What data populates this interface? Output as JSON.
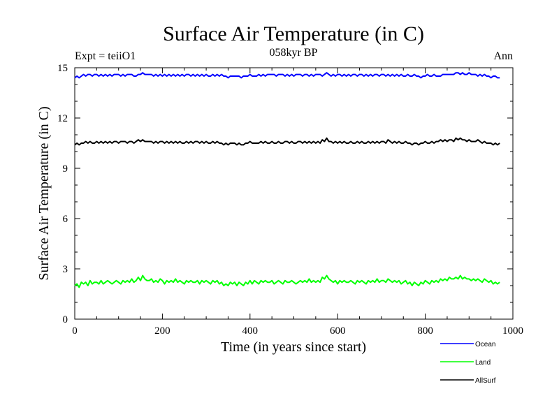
{
  "chart_data": {
    "type": "line",
    "title": "Surface Air Temperature (in C)",
    "subtitle": "058kyr BP",
    "left_note": "Expt = teiiO1",
    "right_note": "Ann",
    "xlabel": "Time (in years since start)",
    "ylabel": "Surface Air Temperature (in C)",
    "xlim": [
      0,
      1000
    ],
    "ylim": [
      0,
      15
    ],
    "xticks": [
      "0",
      "200",
      "400",
      "600",
      "800",
      "1000"
    ],
    "yticks": [
      "0",
      "3",
      "6",
      "9",
      "12",
      "15"
    ],
    "grid": false,
    "legend_position": "bottom-right, below plot",
    "x_step": 5,
    "series": [
      {
        "name": "Ocean",
        "color": "#0000ff",
        "values": [
          14.4,
          14.5,
          14.4,
          14.5,
          14.6,
          14.5,
          14.6,
          14.6,
          14.5,
          14.6,
          14.6,
          14.5,
          14.6,
          14.5,
          14.6,
          14.5,
          14.6,
          14.5,
          14.6,
          14.6,
          14.6,
          14.5,
          14.6,
          14.5,
          14.6,
          14.6,
          14.6,
          14.5,
          14.5,
          14.6,
          14.6,
          14.7,
          14.6,
          14.6,
          14.6,
          14.6,
          14.5,
          14.6,
          14.5,
          14.6,
          14.5,
          14.6,
          14.5,
          14.6,
          14.5,
          14.6,
          14.5,
          14.6,
          14.5,
          14.6,
          14.5,
          14.6,
          14.6,
          14.5,
          14.6,
          14.5,
          14.6,
          14.5,
          14.6,
          14.5,
          14.6,
          14.5,
          14.5,
          14.6,
          14.5,
          14.6,
          14.5,
          14.6,
          14.5,
          14.5,
          14.4,
          14.5,
          14.5,
          14.5,
          14.5,
          14.5,
          14.4,
          14.5,
          14.5,
          14.5,
          14.6,
          14.5,
          14.5,
          14.5,
          14.6,
          14.5,
          14.6,
          14.5,
          14.6,
          14.6,
          14.6,
          14.6,
          14.5,
          14.6,
          14.6,
          14.6,
          14.5,
          14.6,
          14.5,
          14.6,
          14.5,
          14.6,
          14.6,
          14.6,
          14.5,
          14.6,
          14.6,
          14.5,
          14.6,
          14.5,
          14.6,
          14.6,
          14.6,
          14.5,
          14.6,
          14.7,
          14.6,
          14.5,
          14.6,
          14.5,
          14.6,
          14.6,
          14.5,
          14.6,
          14.5,
          14.6,
          14.5,
          14.6,
          14.6,
          14.5,
          14.6,
          14.6,
          14.5,
          14.6,
          14.5,
          14.6,
          14.5,
          14.6,
          14.6,
          14.5,
          14.6,
          14.6,
          14.5,
          14.6,
          14.5,
          14.6,
          14.5,
          14.6,
          14.5,
          14.6,
          14.5,
          14.5,
          14.6,
          14.5,
          14.5,
          14.6,
          14.5,
          14.5,
          14.4,
          14.5,
          14.5,
          14.6,
          14.5,
          14.5,
          14.6,
          14.5,
          14.5,
          14.5,
          14.6,
          14.6,
          14.6,
          14.6,
          14.6,
          14.6,
          14.7,
          14.7,
          14.6,
          14.7,
          14.6,
          14.6,
          14.7,
          14.6,
          14.6,
          14.6,
          14.5,
          14.6,
          14.5,
          14.6,
          14.5,
          14.5,
          14.4,
          14.5,
          14.5,
          14.4,
          14.4
        ]
      },
      {
        "name": "Land",
        "color": "#00ff00",
        "values": [
          2.0,
          2.1,
          1.9,
          2.2,
          2.1,
          2.2,
          2.0,
          2.3,
          2.1,
          2.2,
          2.2,
          2.1,
          2.3,
          2.1,
          2.2,
          2.3,
          2.2,
          2.1,
          2.2,
          2.3,
          2.2,
          2.1,
          2.3,
          2.2,
          2.3,
          2.2,
          2.4,
          2.2,
          2.3,
          2.5,
          2.3,
          2.6,
          2.4,
          2.3,
          2.3,
          2.4,
          2.2,
          2.3,
          2.2,
          2.4,
          2.3,
          2.1,
          2.3,
          2.2,
          2.3,
          2.2,
          2.4,
          2.2,
          2.3,
          2.2,
          2.1,
          2.3,
          2.2,
          2.3,
          2.2,
          2.2,
          2.3,
          2.1,
          2.3,
          2.2,
          2.3,
          2.2,
          2.1,
          2.3,
          2.2,
          2.3,
          2.1,
          2.2,
          2.0,
          2.1,
          2.0,
          2.2,
          2.1,
          2.2,
          2.0,
          2.2,
          2.1,
          2.0,
          2.2,
          2.1,
          2.3,
          2.1,
          2.3,
          2.2,
          2.1,
          2.3,
          2.2,
          2.3,
          2.2,
          2.2,
          2.3,
          2.1,
          2.2,
          2.3,
          2.2,
          2.1,
          2.3,
          2.2,
          2.2,
          2.3,
          2.2,
          2.1,
          2.2,
          2.3,
          2.2,
          2.3,
          2.2,
          2.4,
          2.2,
          2.3,
          2.2,
          2.3,
          2.2,
          2.5,
          2.4,
          2.6,
          2.4,
          2.3,
          2.2,
          2.3,
          2.1,
          2.3,
          2.2,
          2.3,
          2.2,
          2.2,
          2.3,
          2.2,
          2.1,
          2.3,
          2.2,
          2.3,
          2.2,
          2.1,
          2.3,
          2.2,
          2.3,
          2.2,
          2.4,
          2.2,
          2.3,
          2.3,
          2.2,
          2.4,
          2.3,
          2.2,
          2.3,
          2.2,
          2.3,
          2.1,
          2.2,
          2.3,
          2.1,
          2.2,
          2.0,
          2.2,
          2.1,
          2.0,
          2.2,
          2.1,
          2.3,
          2.2,
          2.1,
          2.3,
          2.2,
          2.3,
          2.2,
          2.4,
          2.3,
          2.4,
          2.3,
          2.5,
          2.4,
          2.4,
          2.5,
          2.4,
          2.6,
          2.4,
          2.5,
          2.4,
          2.4,
          2.3,
          2.4,
          2.3,
          2.4,
          2.3,
          2.2,
          2.4,
          2.3,
          2.2,
          2.3,
          2.1,
          2.2,
          2.1,
          2.2
        ]
      },
      {
        "name": "AllSurf",
        "color": "#000000",
        "values": [
          10.4,
          10.5,
          10.4,
          10.5,
          10.5,
          10.6,
          10.5,
          10.6,
          10.5,
          10.5,
          10.6,
          10.5,
          10.6,
          10.5,
          10.6,
          10.5,
          10.6,
          10.5,
          10.6,
          10.6,
          10.5,
          10.6,
          10.6,
          10.6,
          10.5,
          10.6,
          10.6,
          10.5,
          10.6,
          10.7,
          10.6,
          10.7,
          10.6,
          10.6,
          10.6,
          10.6,
          10.5,
          10.6,
          10.5,
          10.6,
          10.6,
          10.5,
          10.6,
          10.5,
          10.6,
          10.5,
          10.6,
          10.5,
          10.6,
          10.5,
          10.5,
          10.6,
          10.5,
          10.6,
          10.5,
          10.6,
          10.6,
          10.5,
          10.6,
          10.5,
          10.6,
          10.5,
          10.5,
          10.6,
          10.5,
          10.6,
          10.5,
          10.5,
          10.4,
          10.5,
          10.4,
          10.5,
          10.5,
          10.5,
          10.4,
          10.5,
          10.4,
          10.4,
          10.5,
          10.5,
          10.6,
          10.5,
          10.5,
          10.5,
          10.5,
          10.6,
          10.5,
          10.6,
          10.5,
          10.5,
          10.6,
          10.5,
          10.5,
          10.6,
          10.5,
          10.5,
          10.6,
          10.6,
          10.5,
          10.6,
          10.5,
          10.5,
          10.6,
          10.6,
          10.5,
          10.6,
          10.5,
          10.6,
          10.5,
          10.6,
          10.5,
          10.6,
          10.5,
          10.7,
          10.6,
          10.8,
          10.6,
          10.6,
          10.5,
          10.6,
          10.5,
          10.6,
          10.5,
          10.6,
          10.5,
          10.5,
          10.6,
          10.5,
          10.5,
          10.6,
          10.5,
          10.6,
          10.5,
          10.5,
          10.6,
          10.5,
          10.6,
          10.5,
          10.6,
          10.5,
          10.6,
          10.6,
          10.5,
          10.7,
          10.6,
          10.5,
          10.6,
          10.5,
          10.6,
          10.5,
          10.5,
          10.6,
          10.5,
          10.5,
          10.4,
          10.5,
          10.5,
          10.4,
          10.5,
          10.5,
          10.6,
          10.5,
          10.5,
          10.6,
          10.5,
          10.6,
          10.6,
          10.7,
          10.6,
          10.7,
          10.6,
          10.7,
          10.7,
          10.6,
          10.8,
          10.7,
          10.8,
          10.7,
          10.7,
          10.6,
          10.7,
          10.6,
          10.6,
          10.6,
          10.7,
          10.6,
          10.5,
          10.6,
          10.5,
          10.5,
          10.5,
          10.4,
          10.5,
          10.4,
          10.5
        ]
      }
    ]
  }
}
